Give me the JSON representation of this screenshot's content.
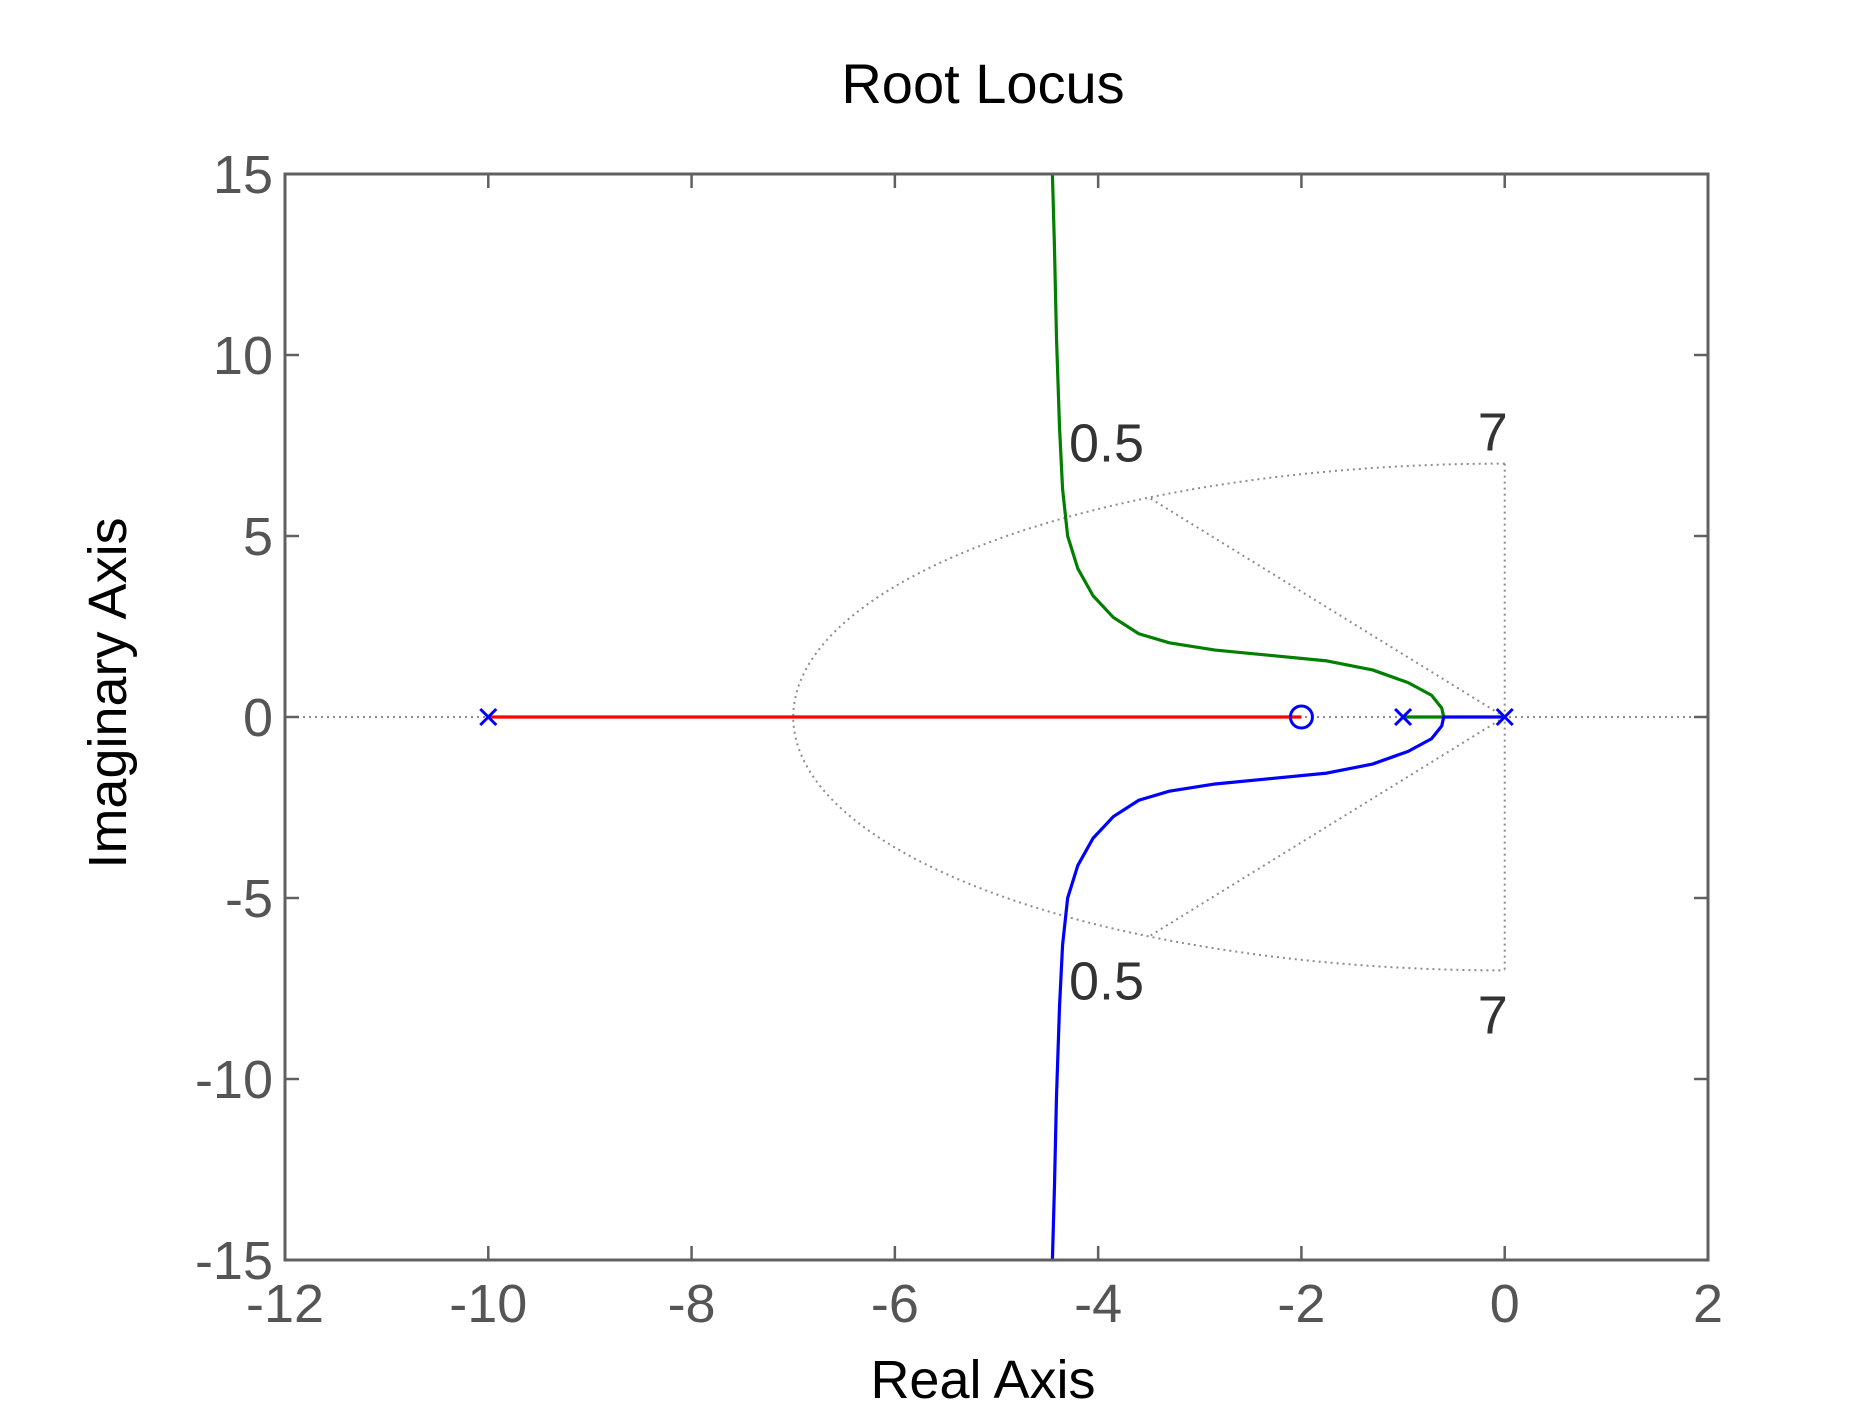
{
  "chart_data": {
    "type": "line",
    "title": "Root Locus",
    "xlabel": "Real Axis",
    "ylabel": "Imaginary Axis",
    "xlim": [
      -12,
      2
    ],
    "ylim": [
      -15,
      15
    ],
    "x_ticks": [
      -12,
      -10,
      -8,
      -6,
      -4,
      -2,
      0,
      2
    ],
    "y_ticks": [
      -15,
      -10,
      -5,
      0,
      5,
      10,
      15
    ],
    "grid": false,
    "colors": {
      "axes": "#606060",
      "text": "#000000",
      "tick_label": "#555555",
      "grid_overlay": "#8c8c8c",
      "annotation": "#333333"
    },
    "poles": [
      [
        -10,
        0
      ],
      [
        -1,
        0
      ],
      [
        0,
        0
      ]
    ],
    "zeros": [
      [
        -2,
        0
      ]
    ],
    "marker_color": "#0000ff",
    "branches": [
      {
        "color": "#ff0000",
        "points": [
          [
            -10,
            0
          ],
          [
            -2,
            0
          ]
        ]
      },
      {
        "color": "#007f00",
        "points": [
          [
            -1,
            0
          ],
          [
            -0.6,
            0
          ],
          [
            -0.62,
            0.25
          ],
          [
            -0.72,
            0.6
          ],
          [
            -0.95,
            0.95
          ],
          [
            -1.3,
            1.3
          ],
          [
            -1.75,
            1.55
          ],
          [
            -2.3,
            1.7
          ],
          [
            -2.85,
            1.85
          ],
          [
            -3.3,
            2.05
          ],
          [
            -3.6,
            2.3
          ],
          [
            -3.85,
            2.75
          ],
          [
            -4.05,
            3.35
          ],
          [
            -4.2,
            4.1
          ],
          [
            -4.3,
            5
          ],
          [
            -4.35,
            6.3
          ],
          [
            -4.38,
            8
          ],
          [
            -4.41,
            10.5
          ],
          [
            -4.43,
            13
          ],
          [
            -4.45,
            15
          ]
        ]
      },
      {
        "color": "#0000ff",
        "points": [
          [
            0,
            0
          ],
          [
            -0.6,
            0
          ],
          [
            -0.62,
            -0.25
          ],
          [
            -0.72,
            -0.6
          ],
          [
            -0.95,
            -0.95
          ],
          [
            -1.3,
            -1.3
          ],
          [
            -1.75,
            -1.55
          ],
          [
            -2.3,
            -1.7
          ],
          [
            -2.85,
            -1.85
          ],
          [
            -3.3,
            -2.05
          ],
          [
            -3.6,
            -2.3
          ],
          [
            -3.85,
            -2.75
          ],
          [
            -4.05,
            -3.35
          ],
          [
            -4.2,
            -4.1
          ],
          [
            -4.3,
            -5
          ],
          [
            -4.35,
            -6.3
          ],
          [
            -4.38,
            -8
          ],
          [
            -4.41,
            -10.5
          ],
          [
            -4.43,
            -13
          ],
          [
            -4.45,
            -15
          ]
        ]
      }
    ],
    "constraint_overlay": {
      "damping_ratio": 0.5,
      "natural_frequency": 7,
      "labels": {
        "damping_upper": "0.5",
        "damping_lower": "0.5",
        "frequency_upper": "7",
        "frequency_lower": "7"
      }
    }
  }
}
